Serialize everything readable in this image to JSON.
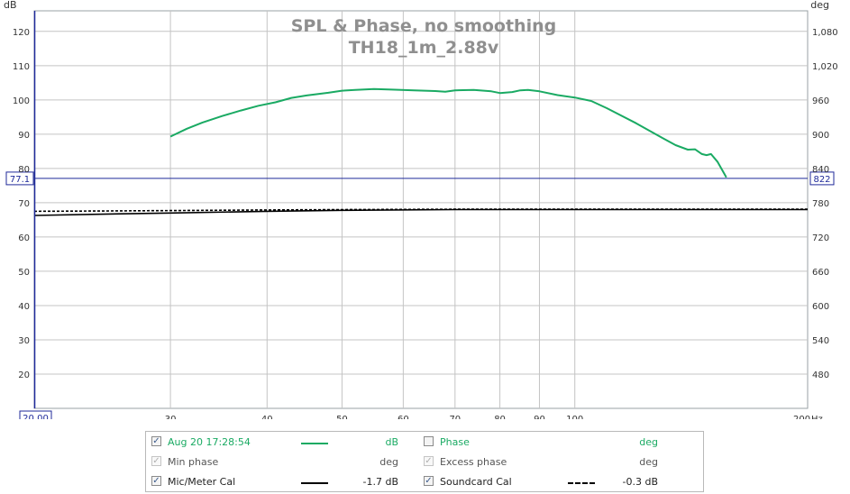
{
  "chart_data": {
    "type": "line",
    "title": "SPL & Phase, no smoothing",
    "subtitle": "TH18_1m_2.88v",
    "y_unit": "dB",
    "y2_unit": "deg",
    "x_unit": "Hz",
    "x_scale": "log",
    "xlim": [
      20,
      200
    ],
    "ylim": [
      10,
      126
    ],
    "y2lim": [
      420,
      1116
    ],
    "x_ticks": [
      "30",
      "40",
      "50",
      "60",
      "70",
      "80",
      "90",
      "100"
    ],
    "x_end_label": "200",
    "x_start_label": "20.00",
    "y_ticks": [
      20,
      30,
      40,
      50,
      60,
      70,
      80,
      90,
      100,
      110,
      120
    ],
    "y2_ticks": [
      "480",
      "540",
      "600",
      "660",
      "720",
      "780",
      "840",
      "900",
      "960",
      "1,020",
      "1,080"
    ],
    "grid": true,
    "cursor": {
      "y": 77.1,
      "label": "77.1",
      "right_label": "822"
    },
    "series": [
      {
        "name": "Aug 20 17:28:54",
        "color": "#1aaa63",
        "style": "solid",
        "x": [
          30,
          31.5,
          33,
          35,
          37,
          39,
          41,
          43,
          45,
          48,
          50,
          52,
          55,
          58,
          62,
          66,
          68,
          70,
          74,
          78,
          80,
          83,
          85,
          87,
          90,
          95,
          100,
          105,
          110,
          120,
          130,
          135,
          140,
          143,
          146,
          148,
          150,
          153,
          157
        ],
        "values": [
          89.3,
          91.6,
          93.4,
          95.3,
          96.9,
          98.3,
          99.3,
          100.6,
          101.3,
          102.1,
          102.7,
          102.9,
          103.2,
          103.0,
          102.8,
          102.6,
          102.4,
          102.8,
          102.9,
          102.5,
          102.0,
          102.3,
          102.8,
          102.9,
          102.5,
          101.4,
          100.7,
          99.7,
          97.6,
          93.2,
          88.8,
          86.8,
          85.5,
          85.6,
          84.2,
          83.9,
          84.2,
          81.9,
          77.4
        ]
      },
      {
        "name": "Mic/Meter Cal",
        "color": "#000000",
        "style": "solid",
        "x": [
          20,
          25,
          30,
          40,
          50,
          70,
          100,
          150,
          200
        ],
        "values": [
          66.3,
          66.7,
          67.0,
          67.5,
          67.8,
          68.0,
          68.0,
          68.0,
          68.0
        ]
      },
      {
        "name": "Soundcard Cal",
        "color": "#000000",
        "style": "dashed",
        "x": [
          20,
          25,
          30,
          40,
          50,
          70,
          100,
          150,
          200
        ],
        "values": [
          67.5,
          67.6,
          67.7,
          67.9,
          68.0,
          68.1,
          68.1,
          68.1,
          68.1
        ]
      }
    ]
  },
  "legend": [
    {
      "name": "Aug 20 17:28:54",
      "checked": true,
      "value": "dB",
      "line": "solid",
      "color": "#1aaa63",
      "enabled": true
    },
    {
      "name": "Phase",
      "checked": false,
      "value": "deg",
      "line": "none",
      "color": "#1aaa63",
      "enabled": true
    },
    {
      "name": "Min phase",
      "checked": true,
      "value": "deg",
      "line": "none",
      "color": "#555555",
      "enabled": false
    },
    {
      "name": "Excess phase",
      "checked": true,
      "value": "deg",
      "line": "none",
      "color": "#555555",
      "enabled": false
    },
    {
      "name": "Mic/Meter Cal",
      "checked": true,
      "value": "-1.7 dB",
      "line": "solid",
      "color": "#000000",
      "enabled": true
    },
    {
      "name": "Soundcard Cal",
      "checked": true,
      "value": "-0.3 dB",
      "line": "dashed",
      "color": "#000000",
      "enabled": true
    }
  ],
  "colors": {
    "frame": "#9aa0a6",
    "grid": "#c4c4c4",
    "cursor": "#1f2a9a",
    "title": "#8f8f8f",
    "tick_text": "#333333"
  }
}
